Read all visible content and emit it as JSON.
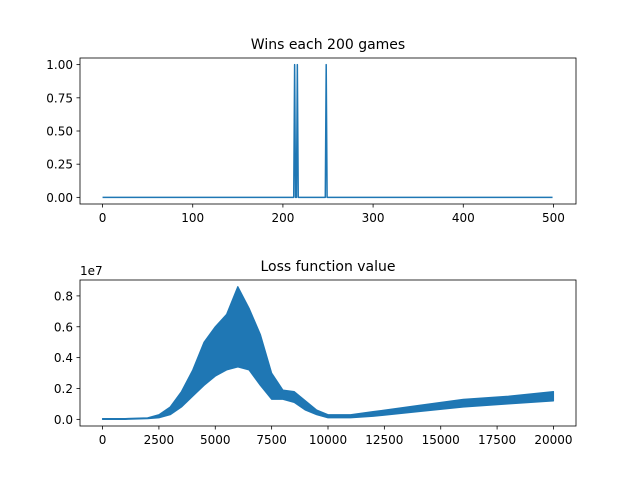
{
  "chart_data": [
    {
      "type": "line",
      "title": "Wins each 200 games",
      "xlabel": "",
      "ylabel": "",
      "xlim": [
        -25,
        525
      ],
      "ylim": [
        -0.05,
        1.05
      ],
      "xticks": [
        0,
        100,
        200,
        300,
        400,
        500
      ],
      "xtick_labels": [
        "0",
        "100",
        "200",
        "300",
        "400",
        "500"
      ],
      "yticks": [
        0,
        0.25,
        0.5,
        0.75,
        1.0
      ],
      "ytick_labels": [
        "0.00",
        "0.25",
        "0.50",
        "0.75",
        "1.00"
      ],
      "grid": false,
      "series": [
        {
          "color": "#1f77b4",
          "x": [
            0,
            212,
            213,
            214,
            215,
            216,
            217,
            218,
            219,
            247,
            248,
            249,
            250,
            499
          ],
          "y": [
            0,
            0,
            1,
            0,
            0,
            1,
            0,
            0,
            0,
            0,
            1,
            0,
            0,
            0
          ]
        }
      ]
    },
    {
      "type": "line",
      "title": "Loss function value",
      "xlabel": "",
      "ylabel": "",
      "offset_text": "1e7",
      "xlim": [
        -1000,
        21000
      ],
      "ylim": [
        -0.43,
        9.03
      ],
      "xticks": [
        0,
        2500,
        5000,
        7500,
        10000,
        12500,
        15000,
        17500,
        20000
      ],
      "xtick_labels": [
        "0",
        "2500",
        "5000",
        "7500",
        "10000",
        "12500",
        "15000",
        "17500",
        "20000"
      ],
      "yticks": [
        0,
        2,
        4,
        6,
        8
      ],
      "ytick_labels": [
        "0.0",
        "0.2",
        "0.4",
        "0.6",
        "0.8"
      ],
      "grid": false,
      "series": [
        {
          "color": "#1f77b4",
          "note_units": "y values in units of 1e6",
          "x": [
            0,
            1000,
            2000,
            2500,
            3000,
            3500,
            4000,
            4500,
            5000,
            5500,
            6000,
            6500,
            7000,
            7500,
            8000,
            8500,
            9000,
            9500,
            10000,
            11000,
            12000,
            14000,
            16000,
            18000,
            20000
          ],
          "y_low": [
            0,
            0,
            0.05,
            0.1,
            0.3,
            0.8,
            1.5,
            2.2,
            2.8,
            3.2,
            3.4,
            3.2,
            2.2,
            1.3,
            1.3,
            1.1,
            0.6,
            0.3,
            0.1,
            0.1,
            0.2,
            0.5,
            0.8,
            1.0,
            1.2
          ],
          "y_high": [
            0.05,
            0.05,
            0.1,
            0.3,
            0.8,
            1.8,
            3.2,
            5.0,
            6.0,
            6.8,
            8.6,
            7.2,
            5.5,
            3.0,
            1.9,
            1.8,
            1.2,
            0.6,
            0.3,
            0.3,
            0.5,
            0.9,
            1.3,
            1.5,
            1.8
          ]
        }
      ]
    }
  ]
}
